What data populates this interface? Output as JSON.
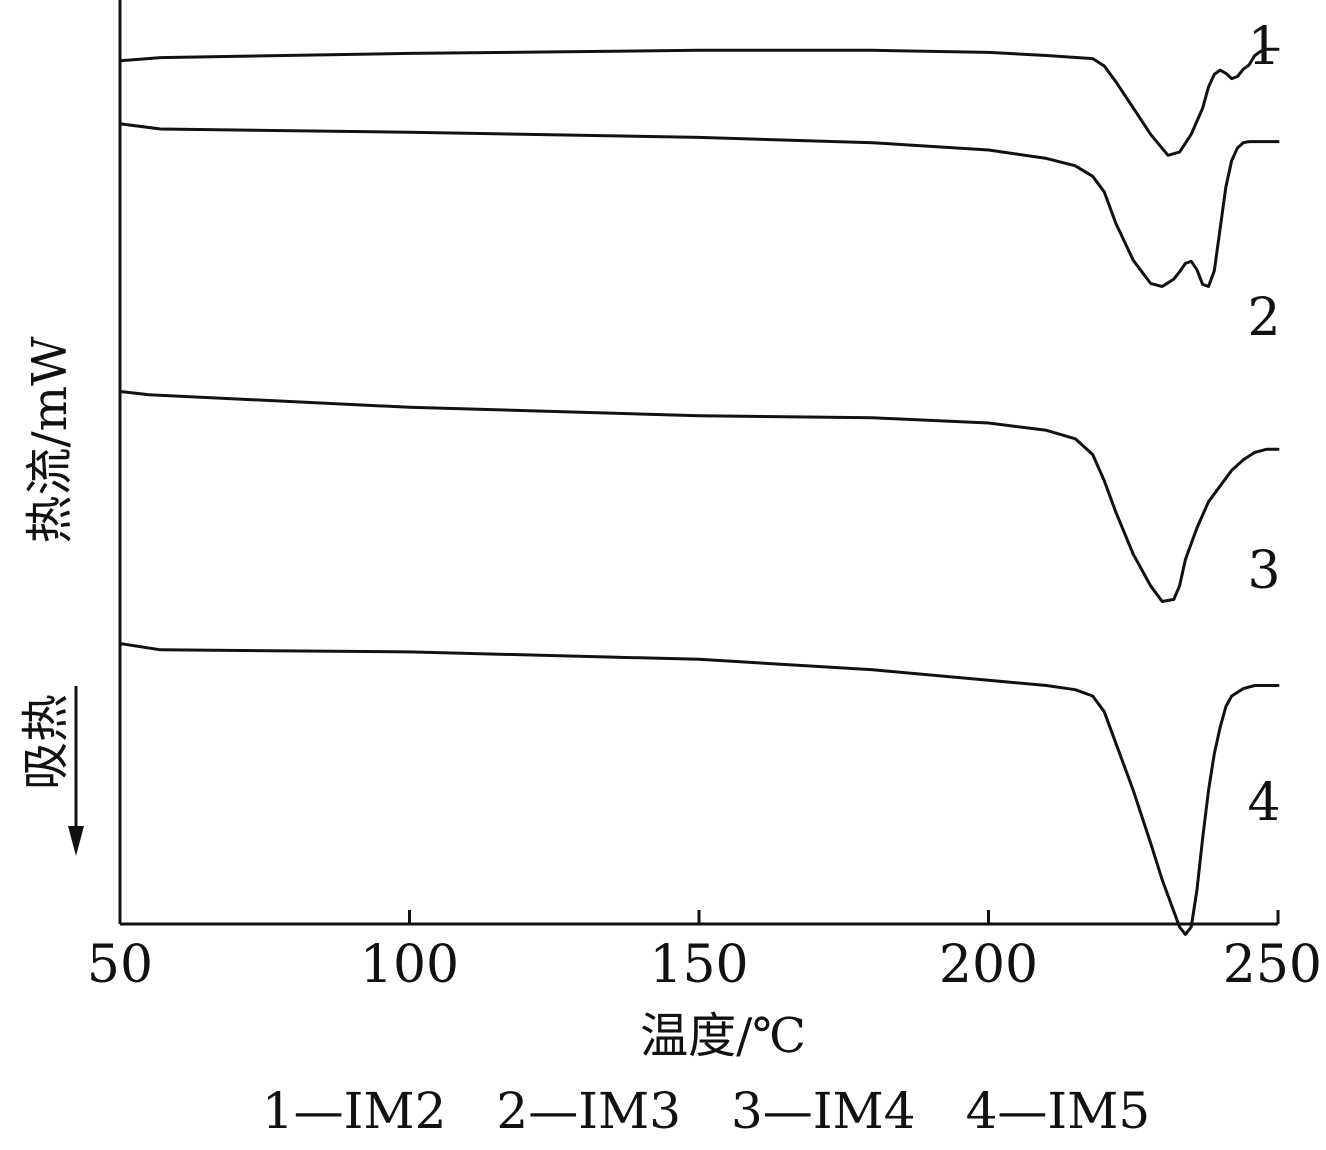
{
  "chart_data": {
    "type": "line",
    "xlabel": "温度/℃",
    "ylabel": "热流/mW",
    "endotherm_label": "吸热",
    "xlim": [
      50,
      250
    ],
    "xticks": [
      50,
      100,
      150,
      200,
      250
    ],
    "tick_labels": [
      "50",
      "100",
      "150",
      "200",
      "250"
    ],
    "y_axis_ticks_shown": false,
    "grid": false,
    "legend_text": "1—IM2　2—IM3　3—IM4　4—IM5",
    "series": [
      {
        "name": "IM2",
        "curve_label": "1",
        "x": [
          50,
          57,
          100,
          150,
          180,
          200,
          210,
          218,
          220,
          222,
          225,
          228,
          231,
          233,
          235,
          237,
          238,
          239,
          240,
          241,
          242,
          243,
          244,
          245,
          246,
          247,
          248,
          250
        ],
        "y": [
          6.5,
          6.8,
          7.2,
          7.5,
          7.5,
          7.3,
          7.0,
          6.7,
          6.0,
          4.5,
          2.0,
          -0.5,
          -2.5,
          -2.2,
          -0.5,
          2.0,
          4.0,
          5.2,
          5.6,
          5.3,
          4.8,
          5.0,
          5.7,
          6.1,
          7.0,
          7.4,
          7.6,
          7.6
        ]
      },
      {
        "name": "IM3",
        "curve_label": "2",
        "x": [
          50,
          57,
          100,
          150,
          180,
          200,
          210,
          215,
          218,
          220,
          222,
          225,
          228,
          230,
          232,
          233,
          234,
          235,
          236,
          237,
          238,
          239,
          240,
          241,
          242,
          243,
          244,
          245,
          250
        ],
        "y": [
          0.5,
          0.0,
          -0.3,
          -0.8,
          -1.3,
          -2.0,
          -2.8,
          -3.5,
          -4.5,
          -6.0,
          -9.0,
          -12.5,
          -14.7,
          -15.0,
          -14.3,
          -13.6,
          -12.8,
          -12.6,
          -13.4,
          -14.8,
          -15.0,
          -13.5,
          -9.5,
          -5.5,
          -3.0,
          -1.8,
          -1.3,
          -1.2,
          -1.2
        ]
      },
      {
        "name": "IM4",
        "curve_label": "3",
        "x": [
          50,
          55,
          100,
          150,
          180,
          200,
          210,
          215,
          218,
          220,
          222,
          225,
          228,
          230,
          232,
          233,
          234,
          236,
          238,
          240,
          242,
          244,
          246,
          248,
          250
        ],
        "y": [
          -25.0,
          -25.3,
          -26.5,
          -27.3,
          -27.5,
          -28.0,
          -28.7,
          -29.5,
          -31.0,
          -33.5,
          -36.5,
          -40.5,
          -43.5,
          -45.0,
          -44.8,
          -43.5,
          -41.0,
          -38.0,
          -35.5,
          -34.0,
          -32.5,
          -31.5,
          -30.8,
          -30.5,
          -30.5
        ]
      },
      {
        "name": "IM5",
        "curve_label": "4",
        "x": [
          50,
          57,
          100,
          150,
          180,
          200,
          210,
          215,
          218,
          220,
          222,
          225,
          228,
          230,
          232,
          233,
          234,
          235,
          236,
          237,
          238,
          239,
          240,
          241,
          242,
          244,
          246,
          250
        ],
        "y": [
          -49.0,
          -49.6,
          -49.8,
          -50.5,
          -51.5,
          -52.5,
          -53.0,
          -53.4,
          -54.0,
          -55.5,
          -58.5,
          -63.0,
          -68.0,
          -71.5,
          -74.5,
          -76.0,
          -76.7,
          -76.0,
          -72.5,
          -67.5,
          -63.0,
          -59.5,
          -57.0,
          -55.0,
          -54.0,
          -53.3,
          -53.0,
          -53.0
        ]
      }
    ]
  }
}
